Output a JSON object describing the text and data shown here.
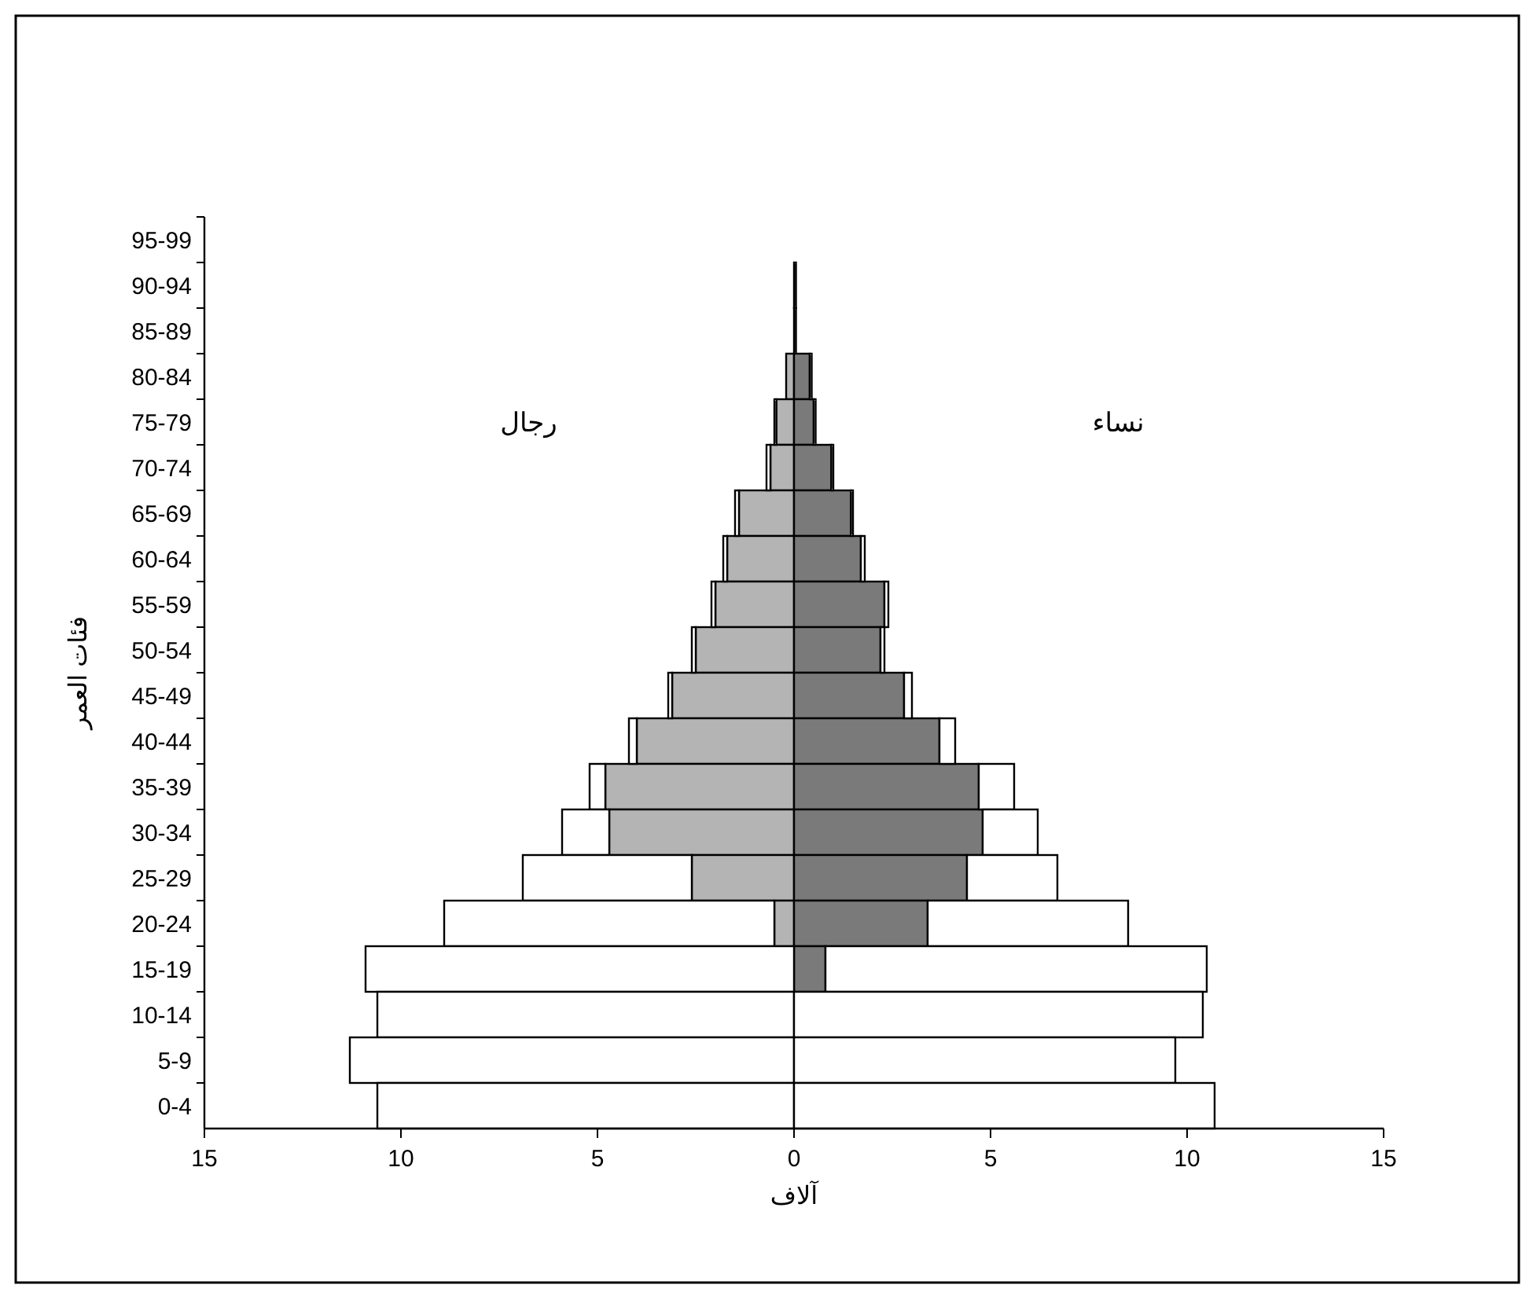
{
  "chart_data": {
    "type": "bar",
    "orientation": "horizontal",
    "stacked": true,
    "xlabel": "آلاف",
    "ylabel": "فئات العمر",
    "annotations": [
      "رجال",
      "نساء"
    ],
    "categories": [
      "95-99",
      "90-94",
      "85-89",
      "80-84",
      "75-79",
      "70-74",
      "65-69",
      "60-64",
      "55-59",
      "50-54",
      "45-49",
      "40-44",
      "35-39",
      "30-34",
      "25-29",
      "20-24",
      "15-19",
      "10-14",
      "5-9",
      "0-4"
    ],
    "series": [
      {
        "color": "#b4b4b4",
        "values": [
          null,
          null,
          null,
          -0.2,
          -0.45,
          -0.6,
          -1.4,
          -1.7,
          -2.0,
          -2.5,
          -3.1,
          -4.0,
          -4.8,
          -4.7,
          -2.6,
          -0.5,
          null,
          null,
          null,
          null
        ]
      },
      {
        "color": "#7a7a7a",
        "values": [
          null,
          0.05,
          0.05,
          0.4,
          0.5,
          0.95,
          1.45,
          1.7,
          2.3,
          2.2,
          2.8,
          3.7,
          4.7,
          4.8,
          4.4,
          3.4,
          0.8,
          null,
          null,
          null
        ]
      },
      {
        "color": "#ffffff",
        "values": [
          null,
          null,
          null,
          null,
          -0.05,
          -0.1,
          -0.1,
          -0.1,
          -0.1,
          -0.1,
          -0.1,
          -0.2,
          -0.4,
          -1.2,
          -4.3,
          -8.4,
          -10.9,
          -10.6,
          -11.3,
          -10.6
        ]
      },
      {
        "color": "#ffffff",
        "values": [
          null,
          null,
          null,
          0.05,
          0.05,
          0.05,
          0.05,
          0.1,
          0.1,
          0.1,
          0.2,
          0.4,
          0.9,
          1.4,
          2.3,
          5.1,
          9.7,
          10.4,
          9.7,
          10.7
        ]
      }
    ],
    "xlim": [
      -15,
      15
    ],
    "xticks": [
      {
        "value": -15,
        "label": "15"
      },
      {
        "value": -10,
        "label": "10"
      },
      {
        "value": -5,
        "label": "5"
      },
      0,
      5,
      10,
      15
    ],
    "grid": false
  }
}
